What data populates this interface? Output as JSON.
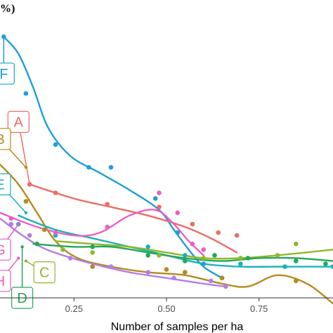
{
  "chart_data": {
    "type": "scatter",
    "title": "",
    "xlabel": "Number of samples per ha",
    "ylabel_visible": "%)",
    "xlim": [
      0.05,
      0.95
    ],
    "ylim": [
      0,
      100
    ],
    "x_ticks": [
      {
        "value": 0.25,
        "label": "0.25"
      },
      {
        "value": 0.5,
        "label": "0.50"
      },
      {
        "value": 0.75,
        "label": "0.75"
      }
    ],
    "grid": false,
    "legend": "none",
    "series": [
      {
        "name": "F",
        "color": "#1e9fd9",
        "points": [
          [
            0.06,
            92
          ],
          [
            0.12,
            72
          ],
          [
            0.2,
            54
          ],
          [
            0.29,
            46
          ],
          [
            0.35,
            46
          ],
          [
            0.47,
            35
          ],
          [
            0.53,
            23
          ],
          [
            0.6,
            12
          ],
          [
            0.65,
            7
          ]
        ],
        "curve": [
          [
            0.06,
            92
          ],
          [
            0.1,
            86
          ],
          [
            0.14,
            74
          ],
          [
            0.18,
            60
          ],
          [
            0.24,
            50
          ],
          [
            0.32,
            44
          ],
          [
            0.4,
            38
          ],
          [
            0.48,
            31
          ],
          [
            0.52,
            24
          ],
          [
            0.56,
            17
          ],
          [
            0.6,
            11
          ],
          [
            0.65,
            7
          ]
        ]
      },
      {
        "name": "A",
        "color": "#ec6c64",
        "points": [
          [
            0.13,
            40
          ],
          [
            0.2,
            37
          ],
          [
            0.34,
            33
          ],
          [
            0.48,
            32
          ],
          [
            0.57,
            26
          ],
          [
            0.64,
            23
          ],
          [
            0.69,
            22
          ]
        ],
        "curve": [
          [
            0.13,
            40
          ],
          [
            0.25,
            35
          ],
          [
            0.35,
            32
          ],
          [
            0.45,
            29
          ],
          [
            0.55,
            25
          ],
          [
            0.62,
            21
          ],
          [
            0.69,
            16
          ]
        ]
      },
      {
        "name": "B",
        "color": "#b58a1e",
        "points": [
          [
            0.05,
            43
          ],
          [
            0.12,
            34
          ],
          [
            0.17,
            24
          ],
          [
            0.3,
            11
          ],
          [
            0.5,
            10
          ],
          [
            0.55,
            9
          ],
          [
            0.65,
            7
          ],
          [
            0.85,
            6
          ]
        ],
        "curve": [
          [
            0.05,
            47
          ],
          [
            0.1,
            40
          ],
          [
            0.15,
            30
          ],
          [
            0.2,
            20
          ],
          [
            0.26,
            14
          ],
          [
            0.35,
            11
          ],
          [
            0.45,
            9
          ],
          [
            0.55,
            8
          ],
          [
            0.65,
            5
          ],
          [
            0.72,
            4
          ],
          [
            0.8,
            8
          ],
          [
            0.88,
            5
          ],
          [
            0.95,
            -2
          ]
        ]
      },
      {
        "name": "E",
        "color": "#17b3b6",
        "points": [
          [
            0.1,
            26
          ],
          [
            0.2,
            22
          ],
          [
            0.3,
            18
          ],
          [
            0.45,
            18
          ],
          [
            0.55,
            15
          ],
          [
            0.7,
            12
          ],
          [
            0.82,
            11
          ],
          [
            0.95,
            11
          ]
        ],
        "curve": [
          [
            0.1,
            29
          ],
          [
            0.2,
            24
          ],
          [
            0.3,
            21
          ],
          [
            0.4,
            18
          ],
          [
            0.5,
            15
          ],
          [
            0.6,
            12
          ],
          [
            0.7,
            11
          ],
          [
            0.8,
            11
          ],
          [
            0.95,
            11
          ]
        ]
      },
      {
        "name": "G",
        "color": "#ea5fc4",
        "points": [
          [
            0.08,
            28
          ],
          [
            0.2,
            23
          ],
          [
            0.34,
            25
          ],
          [
            0.48,
            37
          ],
          [
            0.53,
            30
          ],
          [
            0.57,
            19
          ],
          [
            0.6,
            17
          ]
        ],
        "curve": [
          [
            0.05,
            30
          ],
          [
            0.15,
            25
          ],
          [
            0.25,
            22
          ],
          [
            0.32,
            23
          ],
          [
            0.4,
            29
          ],
          [
            0.47,
            31
          ],
          [
            0.52,
            26
          ],
          [
            0.56,
            20
          ],
          [
            0.6,
            15
          ]
        ]
      },
      {
        "name": "H",
        "color": "#b67de6",
        "points": [
          [
            0.08,
            26
          ],
          [
            0.13,
            22
          ],
          [
            0.24,
            14
          ],
          [
            0.35,
            11
          ],
          [
            0.45,
            9
          ],
          [
            0.52,
            7
          ],
          [
            0.62,
            6
          ],
          [
            0.66,
            4
          ]
        ],
        "curve": [
          [
            0.05,
            28
          ],
          [
            0.1,
            23
          ],
          [
            0.16,
            18
          ],
          [
            0.22,
            15
          ],
          [
            0.3,
            12
          ],
          [
            0.4,
            9
          ],
          [
            0.5,
            7
          ],
          [
            0.6,
            5
          ],
          [
            0.66,
            4
          ]
        ]
      },
      {
        "name": "C",
        "color": "#8fb92b",
        "points": [
          [
            0.22,
            17
          ],
          [
            0.3,
            16
          ],
          [
            0.48,
            15
          ],
          [
            0.6,
            14
          ],
          [
            0.7,
            14
          ],
          [
            0.8,
            15
          ],
          [
            0.85,
            19
          ]
        ],
        "curve": [
          [
            0.2,
            20
          ],
          [
            0.3,
            19
          ],
          [
            0.4,
            18
          ],
          [
            0.5,
            16
          ],
          [
            0.6,
            14
          ],
          [
            0.7,
            14
          ],
          [
            0.8,
            15
          ],
          [
            0.95,
            17
          ]
        ]
      },
      {
        "name": "D",
        "color": "#27a65b",
        "points": [
          [
            0.15,
            19
          ],
          [
            0.3,
            18
          ],
          [
            0.45,
            15
          ],
          [
            0.55,
            13
          ],
          [
            0.63,
            15
          ],
          [
            0.72,
            14
          ],
          [
            0.85,
            13
          ],
          [
            0.93,
            12
          ]
        ],
        "curve": [
          [
            0.14,
            19
          ],
          [
            0.25,
            18
          ],
          [
            0.35,
            18
          ],
          [
            0.45,
            16
          ],
          [
            0.55,
            14
          ],
          [
            0.65,
            13
          ],
          [
            0.75,
            14
          ],
          [
            0.85,
            14
          ],
          [
            0.95,
            13
          ]
        ]
      }
    ],
    "labels": [
      {
        "text": "F",
        "color": "#1e9fd9",
        "x": 0.06,
        "y": 79,
        "tx": 0.06,
        "ty": 92
      },
      {
        "text": "A",
        "color": "#ec6c64",
        "x": 0.1,
        "y": 62,
        "tx": 0.13,
        "ty": 40
      },
      {
        "text": "B",
        "color": "#b58a1e",
        "x": 0.05,
        "y": 56,
        "tx": 0.12,
        "ty": 46
      },
      {
        "text": "E",
        "color": "#17b3b6",
        "x": 0.05,
        "y": 40,
        "tx": 0.12,
        "ty": 30
      },
      {
        "text": "G",
        "color": "#ea5fc4",
        "x": 0.05,
        "y": 17,
        "tx": 0.1,
        "ty": 26
      },
      {
        "text": "H",
        "color": "#ea5fc4",
        "x": 0.05,
        "y": 6,
        "tx": 0.1,
        "ty": 14
      },
      {
        "text": "C",
        "color": "#8fb92b",
        "x": 0.17,
        "y": 9,
        "tx": 0.12,
        "ty": 13
      },
      {
        "text": "D",
        "color": "#27a65b",
        "x": 0.11,
        "y": 0,
        "tx": 0.11,
        "ty": 18
      }
    ]
  }
}
